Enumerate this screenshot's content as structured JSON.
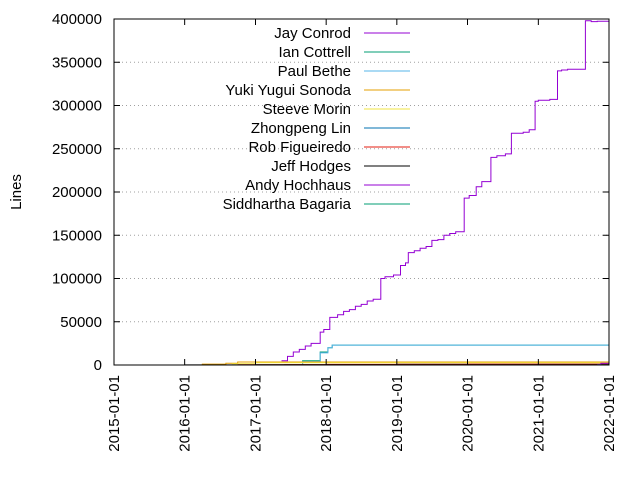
{
  "chart_data": {
    "type": "line",
    "title": "",
    "ylabel": "Lines",
    "xlabel": "",
    "ylim": [
      0,
      400000
    ],
    "xlim": [
      "2015-01-01",
      "2022-01-01"
    ],
    "y_ticks": [
      "0",
      "50000",
      "100000",
      "150000",
      "200000",
      "250000",
      "300000",
      "350000",
      "400000"
    ],
    "x_ticks": [
      "2015-01-01",
      "2016-01-01",
      "2017-01-01",
      "2018-01-01",
      "2019-01-01",
      "2020-01-01",
      "2021-01-01",
      "2022-01-01"
    ],
    "grid": "horizontal dotted",
    "legend_placement": "top-left inside",
    "series": [
      {
        "name": "Jay Conrod",
        "color": "#9400d3",
        "x": [
          "2017-05-15",
          "2017-06-15",
          "2017-07-15",
          "2017-08-15",
          "2017-09-15",
          "2017-10-15",
          "2017-12-01",
          "2017-12-20",
          "2018-01-20",
          "2018-03-01",
          "2018-04-01",
          "2018-05-01",
          "2018-06-01",
          "2018-07-01",
          "2018-08-01",
          "2018-09-01",
          "2018-10-10",
          "2018-11-01",
          "2018-12-15",
          "2019-01-20",
          "2019-02-15",
          "2019-03-01",
          "2019-04-01",
          "2019-05-01",
          "2019-06-01",
          "2019-07-01",
          "2019-08-01",
          "2019-09-01",
          "2019-10-01",
          "2019-11-01",
          "2019-12-15",
          "2020-01-10",
          "2020-02-15",
          "2020-03-15",
          "2020-05-01",
          "2020-06-01",
          "2020-07-15",
          "2020-08-15",
          "2020-10-15",
          "2020-11-15",
          "2020-12-15",
          "2021-01-01",
          "2021-03-01",
          "2021-04-10",
          "2021-05-01",
          "2021-06-01",
          "2021-09-01",
          "2021-09-15",
          "2021-10-01",
          "2021-11-01",
          "2021-12-31"
        ],
        "y": [
          5000,
          10000,
          15000,
          18000,
          22000,
          25000,
          38000,
          41000,
          55000,
          58000,
          62000,
          64000,
          68000,
          70000,
          74000,
          76000,
          100000,
          102000,
          104000,
          115000,
          118000,
          130000,
          132000,
          135000,
          137000,
          144000,
          145000,
          150000,
          152000,
          154000,
          193000,
          196000,
          206000,
          212000,
          240000,
          242000,
          244000,
          268000,
          269000,
          272000,
          305000,
          306000,
          307000,
          340000,
          341000,
          342000,
          398000,
          398000,
          397000,
          397500,
          398000
        ]
      },
      {
        "name": "Ian Cottrell",
        "color": "#009e73",
        "x": [
          "2017-05-01",
          "2017-09-01",
          "2017-12-01",
          "2018-01-10",
          "2018-02-01",
          "2019-01-01",
          "2020-01-01",
          "2021-01-01",
          "2021-12-31"
        ],
        "y": [
          0,
          5000,
          15000,
          20000,
          23000,
          23000,
          23000,
          23000,
          23000
        ]
      },
      {
        "name": "Paul Bethe",
        "color": "#56b4e9",
        "x": [
          "2017-05-01",
          "2017-09-01",
          "2017-12-01",
          "2018-01-10",
          "2018-02-01",
          "2021-12-31"
        ],
        "y": [
          0,
          4000,
          14000,
          20000,
          23000,
          23000
        ]
      },
      {
        "name": "Yuki Yugui Sonoda",
        "color": "#e69f00",
        "x": [
          "2015-10-01",
          "2016-04-01",
          "2016-08-01",
          "2016-10-01",
          "2017-01-01",
          "2018-01-01",
          "2019-01-01",
          "2020-01-01",
          "2021-01-01",
          "2021-12-31"
        ],
        "y": [
          0,
          1000,
          2000,
          3500,
          3500,
          3500,
          3500,
          3500,
          3500,
          3500
        ]
      },
      {
        "name": "Steeve Morin",
        "color": "#f0e442",
        "x": [
          "2016-09-01",
          "2017-01-01",
          "2018-01-01",
          "2019-01-01",
          "2020-01-01",
          "2021-12-31"
        ],
        "y": [
          1500,
          2500,
          2500,
          2500,
          2500,
          2500
        ]
      },
      {
        "name": "Zhongpeng Lin",
        "color": "#0072b2",
        "x": [
          "2018-09-01",
          "2019-01-01",
          "2020-01-01",
          "2021-01-01",
          "2021-12-31"
        ],
        "y": [
          500,
          800,
          900,
          1000,
          1000
        ]
      },
      {
        "name": "Rob Figueiredo",
        "color": "#e51e10",
        "x": [
          "2016-10-01",
          "2017-06-01",
          "2018-01-01",
          "2019-01-01",
          "2020-01-01",
          "2021-12-31"
        ],
        "y": [
          200,
          500,
          700,
          800,
          1000,
          1000
        ]
      },
      {
        "name": "Jeff Hodges",
        "color": "#000000",
        "x": [
          "2016-01-01",
          "2017-01-01",
          "2018-01-01",
          "2019-01-01",
          "2020-01-01",
          "2021-01-01",
          "2021-12-31"
        ],
        "y": [
          100,
          200,
          300,
          300,
          300,
          300,
          300
        ]
      },
      {
        "name": "Andy Hochhaus",
        "color": "#9400d3",
        "x": [
          "2021-11-01",
          "2021-11-20",
          "2021-12-31"
        ],
        "y": [
          500,
          2000,
          2500
        ]
      },
      {
        "name": "Siddhartha Bagaria",
        "color": "#009e73",
        "x": [
          "2021-11-01",
          "2021-12-31"
        ],
        "y": [
          100,
          300
        ]
      }
    ]
  }
}
